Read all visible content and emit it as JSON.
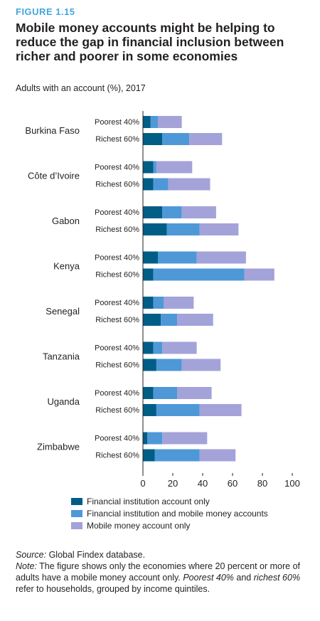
{
  "figure_label": "FIGURE 1.15",
  "title": "Mobile money accounts might be helping to reduce the gap in financial inclusion between richer and poorer in some economies",
  "subtitle": "Adults with an account (%), 2017",
  "colors": {
    "fi_only": "#005e86",
    "fi_and_mm": "#4f98d8",
    "mm_only": "#a3a3d9"
  },
  "chart_data": {
    "type": "bar",
    "orientation": "horizontal",
    "stacked": true,
    "xlim": [
      0,
      100
    ],
    "xticks": [
      "0",
      "20",
      "40",
      "60",
      "80",
      "100"
    ],
    "group_labels": [
      "Poorest 40%",
      "Richest 60%"
    ],
    "series": [
      {
        "name": "Financial institution account only",
        "color": "#005e86"
      },
      {
        "name": "Financial institution and mobile money accounts",
        "color": "#4f98d8"
      },
      {
        "name": "Mobile money account only",
        "color": "#a3a3d9"
      }
    ],
    "economies": [
      {
        "name": "Burkina Faso",
        "poorest": [
          5,
          5,
          16
        ],
        "richest": [
          13,
          18,
          22
        ]
      },
      {
        "name": "Côte d’Ivoire",
        "poorest": [
          7,
          2,
          24
        ],
        "richest": [
          7,
          10,
          28
        ]
      },
      {
        "name": "Gabon",
        "poorest": [
          13,
          13,
          23
        ],
        "richest": [
          16,
          22,
          26
        ]
      },
      {
        "name": "Kenya",
        "poorest": [
          10,
          26,
          33
        ],
        "richest": [
          7,
          61,
          20
        ]
      },
      {
        "name": "Senegal",
        "poorest": [
          7,
          7,
          20
        ],
        "richest": [
          12,
          11,
          24
        ]
      },
      {
        "name": "Tanzania",
        "poorest": [
          7,
          6,
          23
        ],
        "richest": [
          9,
          17,
          26
        ]
      },
      {
        "name": "Uganda",
        "poorest": [
          7,
          16,
          23
        ],
        "richest": [
          9,
          29,
          28
        ]
      },
      {
        "name": "Zimbabwe",
        "poorest": [
          3,
          10,
          30
        ],
        "richest": [
          8,
          30,
          24
        ]
      }
    ]
  },
  "source_label": "Source:",
  "source_text": "Global Findex database.",
  "note_label": "Note:",
  "note_text_1": "The figure shows only the economies where 20 percent or more of adults have a mobile money account only.",
  "note_poorest": "Poorest 40%",
  "note_and": "and",
  "note_richest": "richest 60%",
  "note_text_2": "refer to households, grouped by income quintiles."
}
